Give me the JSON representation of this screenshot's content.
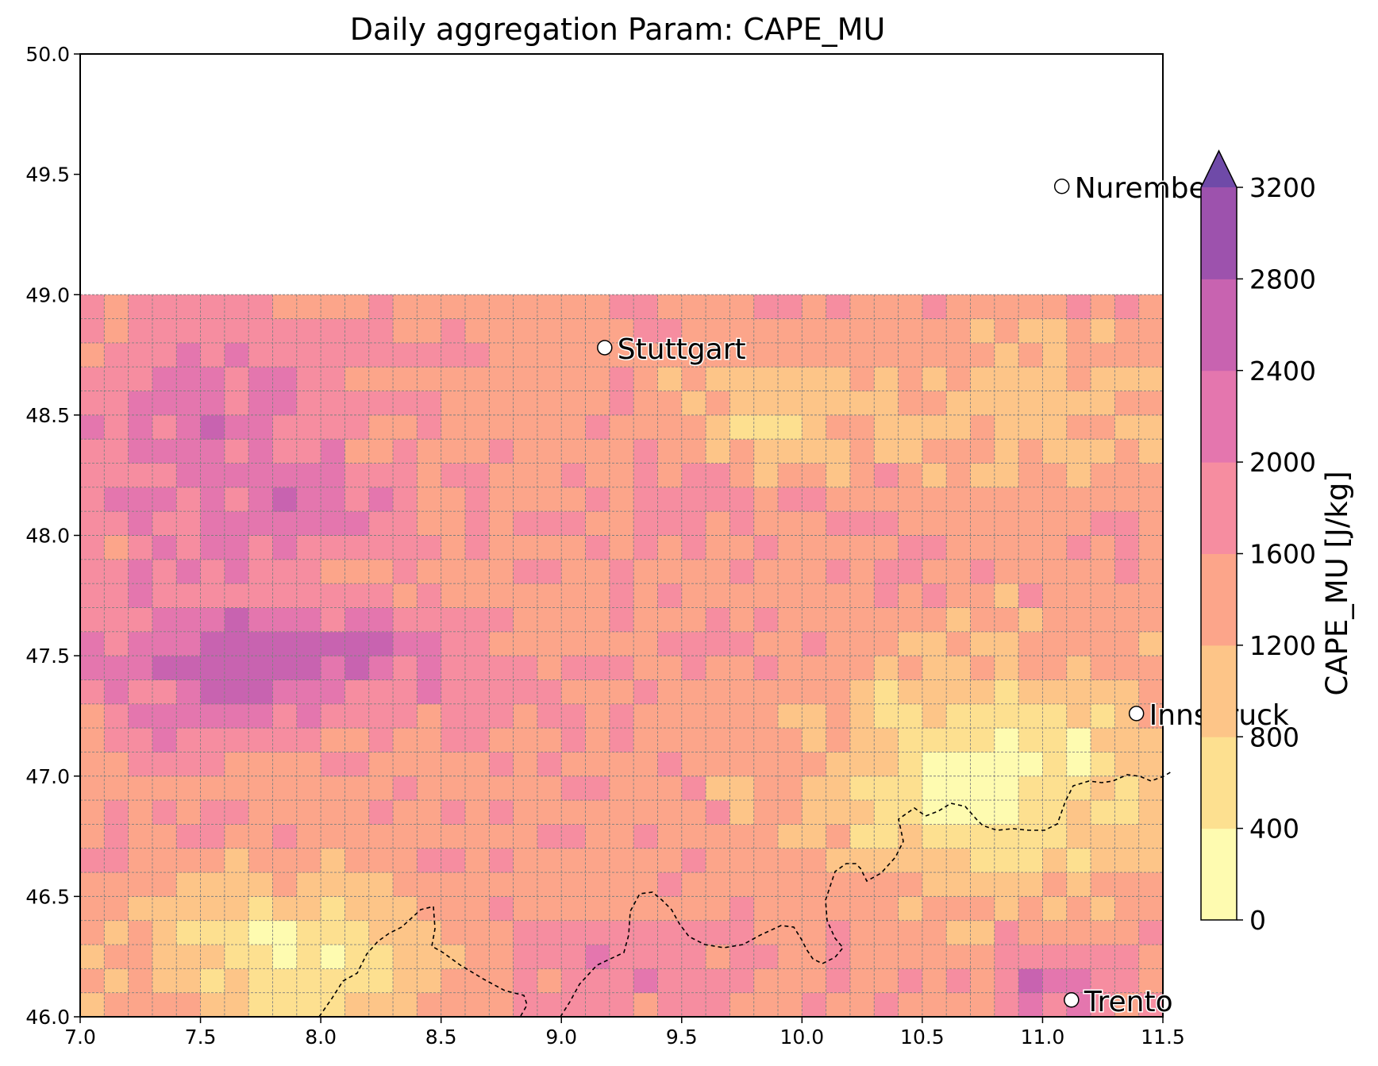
{
  "title": "Daily aggregation Param: CAPE_MU",
  "colorbar": {
    "label": "CAPE_MU  [J/kg]",
    "ticks": [
      "0",
      "400",
      "800",
      "1200",
      "1600",
      "2000",
      "2400",
      "2800",
      "3200"
    ],
    "levels": [
      0,
      400,
      800,
      1200,
      1600,
      2000,
      2400,
      2800,
      3200
    ],
    "colors": [
      "#fefbb0",
      "#fde090",
      "#fdc588",
      "#fca58a",
      "#f68da0",
      "#e476ae",
      "#c863b0",
      "#9d52ad",
      "#6f4aa8"
    ]
  },
  "chart_data": {
    "type": "heatmap",
    "title": "Daily aggregation Param: CAPE_MU",
    "xlim": [
      7.0,
      11.5
    ],
    "ylim": [
      46.0,
      50.0
    ],
    "x_ticks": [
      "7.0",
      "7.5",
      "8.0",
      "8.5",
      "9.0",
      "9.5",
      "10.0",
      "10.5",
      "11.0",
      "11.5"
    ],
    "y_ticks": [
      "46.0",
      "46.5",
      "47.0",
      "47.5",
      "48.0",
      "48.5",
      "49.0",
      "49.5",
      "50.0"
    ],
    "grid_extent": {
      "lon": [
        7.0,
        11.5
      ],
      "lat": [
        46.0,
        49.0
      ],
      "dlon": 0.1,
      "dlat": 0.1
    },
    "units": "J/kg",
    "cities": [
      {
        "name": "Nuremberg",
        "lon": 11.08,
        "lat": 49.45
      },
      {
        "name": "Stuttgart",
        "lon": 9.18,
        "lat": 48.78
      },
      {
        "name": "Innsbruck",
        "lon": 11.39,
        "lat": 47.26
      },
      {
        "name": "Trento",
        "lon": 11.12,
        "lat": 46.07
      }
    ],
    "value_fields": [
      {
        "region": "lon 7.0-8.5, lat 47.0-47.7",
        "approx_value": 2400
      },
      {
        "region": "lon 7.0-8.0, lat 47.9-49.0",
        "approx_value": 2000
      },
      {
        "region": "lon 8.5-10.5, lat 47.7-49.0",
        "approx_value": 1500
      },
      {
        "region": "lon 9.8-11.5, lat 46.4-47.6",
        "approx_value": 500
      },
      {
        "region": "lon 7.4-8.4, lat 46.0-46.5",
        "approx_value": 300
      }
    ]
  }
}
